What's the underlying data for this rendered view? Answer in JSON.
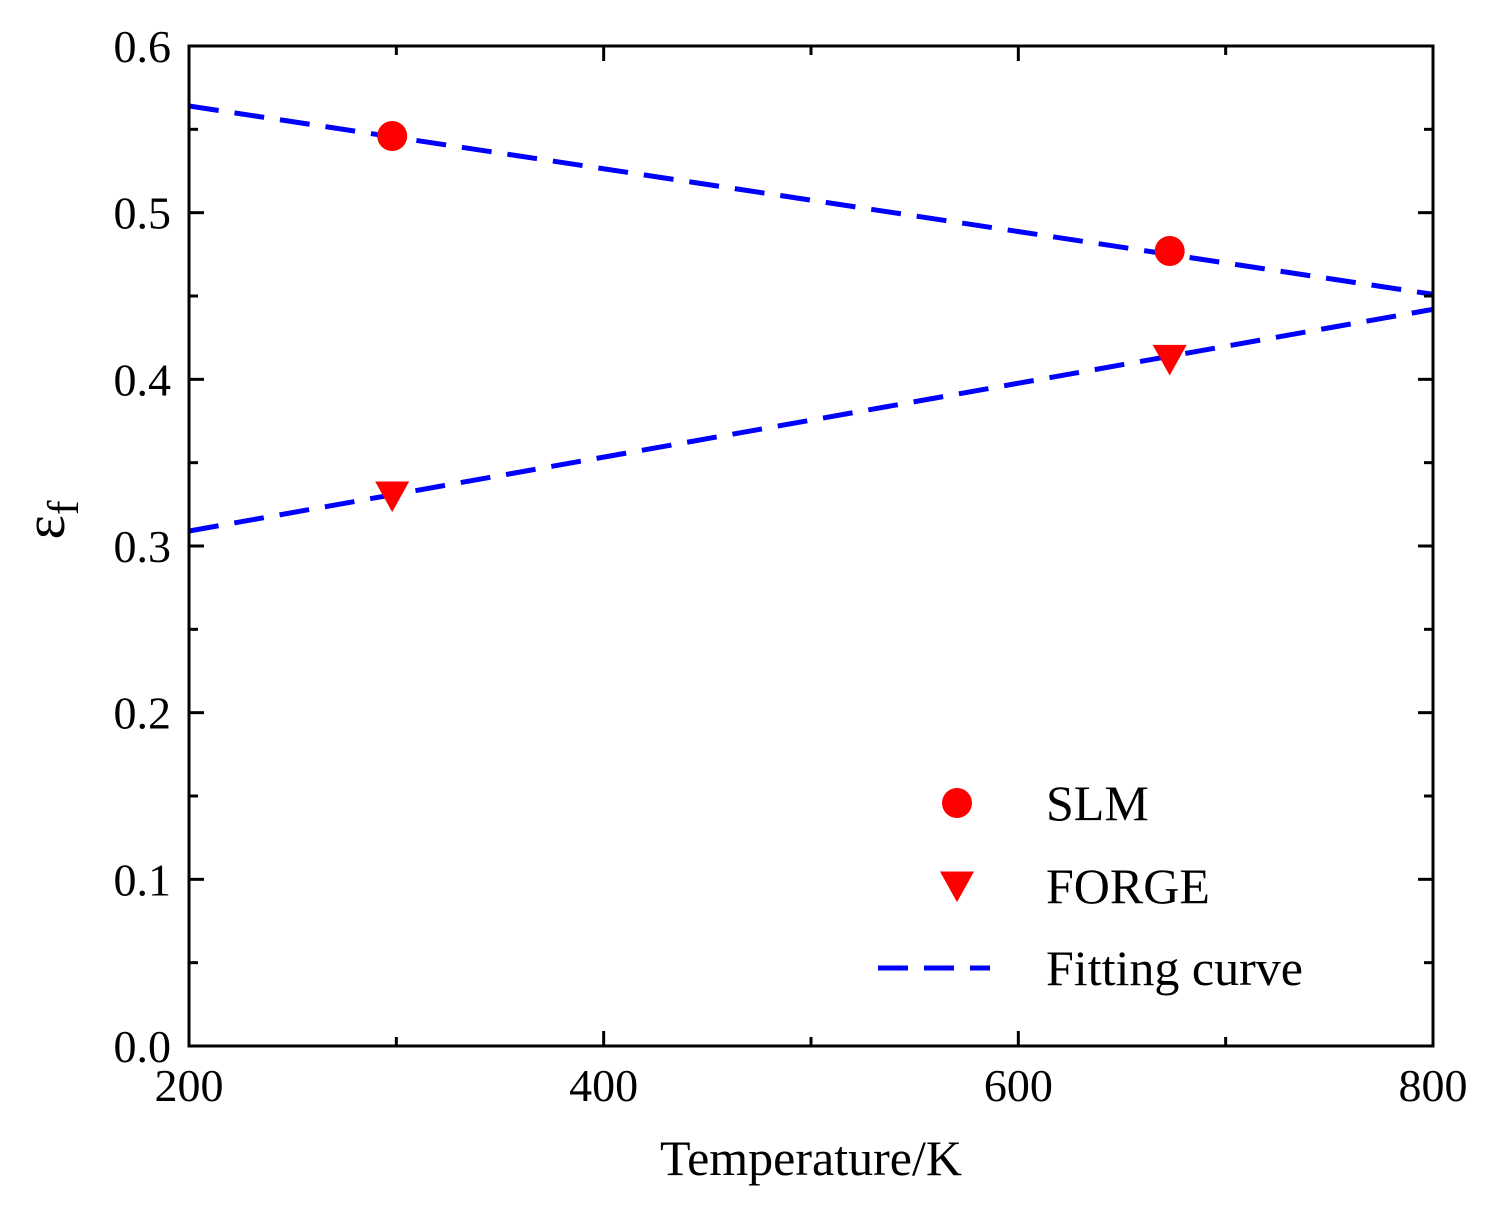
{
  "chart_data": {
    "type": "scatter",
    "xlabel": "Temperature/K",
    "ylabel": {
      "main": "ε",
      "subscript": "f"
    },
    "xlim": [
      200,
      800
    ],
    "ylim": [
      0.0,
      0.6
    ],
    "xticks": [
      200,
      400,
      600,
      800
    ],
    "xtick_labels": [
      "200",
      "400",
      "600",
      "800"
    ],
    "xminor": [
      300,
      500,
      700
    ],
    "yticks": [
      0.0,
      0.1,
      0.2,
      0.3,
      0.4,
      0.5,
      0.6
    ],
    "ytick_labels": [
      "0.0",
      "0.1",
      "0.2",
      "0.3",
      "0.4",
      "0.5",
      "0.6"
    ],
    "yminor": [
      0.05,
      0.15,
      0.25,
      0.35,
      0.45,
      0.55
    ],
    "grid": false,
    "legend_position": "bottom-right",
    "series": [
      {
        "name": "SLM",
        "kind": "scatter",
        "marker": "circle",
        "color": "#ff0000",
        "x": [
          298,
          673
        ],
        "y": [
          0.546,
          0.477
        ]
      },
      {
        "name": "FORGE",
        "kind": "scatter",
        "marker": "triangle-down",
        "color": "#ff0000",
        "x": [
          298,
          673
        ],
        "y": [
          0.33,
          0.412
        ]
      },
      {
        "name": "Fitting curve",
        "kind": "line",
        "style": "dashed",
        "color": "#0000ff",
        "lines": [
          {
            "x": [
              200,
              800
            ],
            "y": [
              0.564,
              0.451
            ]
          },
          {
            "x": [
              200,
              800
            ],
            "y": [
              0.309,
              0.442
            ]
          }
        ]
      }
    ]
  }
}
